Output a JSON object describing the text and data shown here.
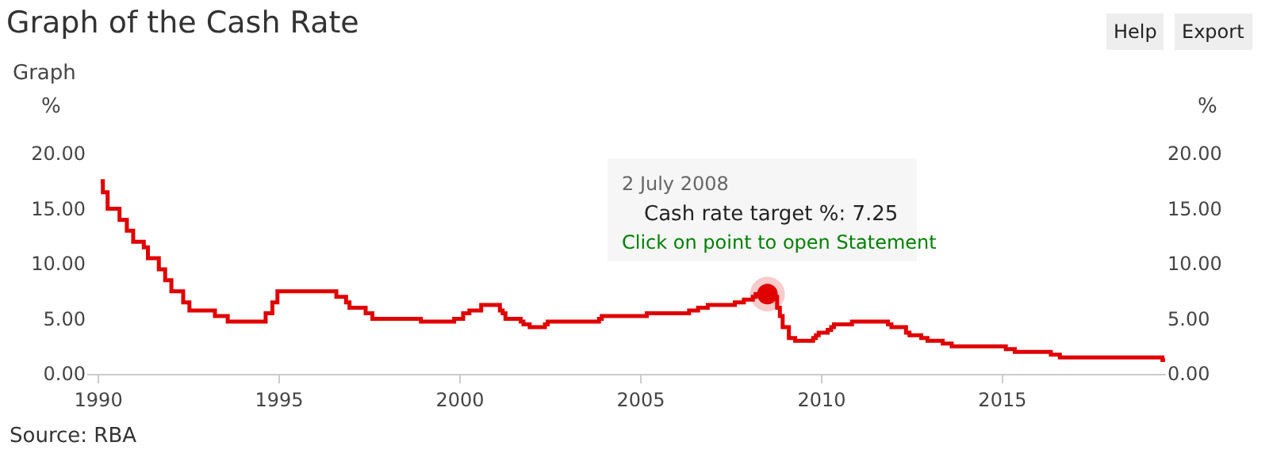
{
  "chart_data": {
    "type": "step",
    "title": "Graph of the Cash Rate",
    "subtitle": "Graph",
    "ylabel": "%",
    "y2label": "%",
    "x": [
      "1990-01-23",
      "1990-02-15",
      "1990-04-04",
      "1990-08-02",
      "1990-10-15",
      "1990-12-18",
      "1991-04-04",
      "1991-05-16",
      "1991-09-03",
      "1991-11-06",
      "1992-01-08",
      "1992-05-06",
      "1992-07-08",
      "1993-03-23",
      "1993-07-30",
      "1994-08-17",
      "1994-10-24",
      "1994-12-14",
      "1996-07-31",
      "1996-11-06",
      "1996-12-11",
      "1997-05-23",
      "1997-07-30",
      "1998-12-02",
      "1999-11-03",
      "2000-02-02",
      "2000-04-05",
      "2000-08-02",
      "2001-02-07",
      "2001-03-07",
      "2001-04-04",
      "2001-09-05",
      "2001-10-03",
      "2001-12-05",
      "2002-05-08",
      "2002-06-05",
      "2003-11-05",
      "2003-12-03",
      "2005-03-02",
      "2006-05-03",
      "2006-08-02",
      "2006-11-08",
      "2007-08-08",
      "2007-11-07",
      "2008-02-06",
      "2008-03-05",
      "2008-09-03",
      "2008-10-08",
      "2008-11-05",
      "2008-12-03",
      "2009-02-04",
      "2009-04-08",
      "2009-10-07",
      "2009-11-04",
      "2009-12-02",
      "2010-03-03",
      "2010-04-07",
      "2010-05-05",
      "2010-11-03",
      "2011-11-02",
      "2011-12-07",
      "2012-05-02",
      "2012-06-06",
      "2012-10-03",
      "2012-12-05",
      "2013-05-08",
      "2013-08-07",
      "2015-02-04",
      "2015-05-06",
      "2016-05-04",
      "2016-08-03",
      "2019-06-05",
      "2019-07-01"
    ],
    "series": [
      {
        "color": "#e00000",
        "marker": "none",
        "values": [
          17.5,
          16.5,
          15.0,
          14.0,
          13.0,
          12.0,
          11.5,
          10.5,
          9.5,
          8.5,
          7.5,
          6.5,
          5.75,
          5.25,
          4.75,
          5.5,
          6.5,
          7.5,
          7.0,
          6.5,
          6.0,
          5.5,
          5.0,
          4.75,
          5.0,
          5.5,
          5.75,
          6.25,
          5.75,
          5.5,
          5.0,
          4.75,
          4.5,
          4.25,
          4.5,
          4.75,
          5.0,
          5.25,
          5.5,
          5.75,
          6.0,
          6.25,
          6.5,
          6.75,
          7.0,
          7.25,
          7.0,
          6.0,
          5.25,
          4.25,
          3.25,
          3.0,
          3.25,
          3.5,
          3.75,
          4.0,
          4.25,
          4.5,
          4.75,
          4.5,
          4.25,
          3.75,
          3.5,
          3.25,
          3.0,
          2.75,
          2.5,
          2.25,
          2.0,
          1.75,
          1.5,
          1.25,
          1.25
        ]
      },
      {
        "type": "scatter",
        "color": "#e00000",
        "marker": "circle",
        "x": [
          "2008-07-02"
        ],
        "values": [
          7.25
        ]
      }
    ],
    "line_style": "solid",
    "grid": false,
    "legend": false,
    "xlim": [
      "1989-09-10",
      "2019-07-10"
    ],
    "xticks": [
      {
        "value": "1990-01-01",
        "label": "1990"
      },
      {
        "value": "1995-01-01",
        "label": "1995"
      },
      {
        "value": "2000-01-01",
        "label": "2000"
      },
      {
        "value": "2005-01-01",
        "label": "2005"
      },
      {
        "value": "2010-01-01",
        "label": "2010"
      },
      {
        "value": "2015-01-01",
        "label": "2015"
      }
    ],
    "ylim": [
      0,
      20
    ],
    "yticks": [
      {
        "value": 0,
        "label": "0.00"
      },
      {
        "value": 5,
        "label": "5.00"
      },
      {
        "value": 10,
        "label": "10.00"
      },
      {
        "value": 15,
        "label": "15.00"
      },
      {
        "value": 20,
        "label": "20.00"
      }
    ],
    "y2lim": [
      0,
      20
    ],
    "y2ticks": [
      {
        "value": 0,
        "label": "0.00"
      },
      {
        "value": 5,
        "label": "5.00"
      },
      {
        "value": 10,
        "label": "10.00"
      },
      {
        "value": 15,
        "label": "15.00"
      },
      {
        "value": 20,
        "label": "20.00"
      }
    ],
    "annotations": [
      "2 July 2008",
      "Cash rate target %: 7.25",
      "Click on point to open Statement",
      "Source: RBA",
      "Help",
      "Export"
    ]
  }
}
